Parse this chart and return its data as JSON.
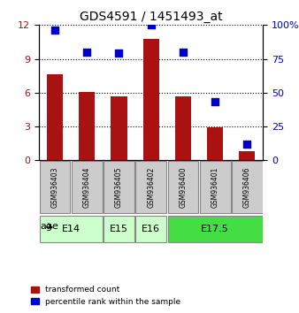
{
  "title": "GDS4591 / 1451493_at",
  "samples": [
    "GSM936403",
    "GSM936404",
    "GSM936405",
    "GSM936402",
    "GSM936400",
    "GSM936401",
    "GSM936406"
  ],
  "transformed_count": [
    7.6,
    6.05,
    5.7,
    10.8,
    5.7,
    2.9,
    0.8
  ],
  "percentile_rank": [
    96,
    80,
    79,
    100,
    80,
    43,
    12
  ],
  "bar_color": "#aa1111",
  "dot_color": "#0000cc",
  "left_ylim": [
    0,
    12
  ],
  "right_ylim": [
    0,
    100
  ],
  "left_yticks": [
    0,
    3,
    6,
    9,
    12
  ],
  "right_yticks": [
    0,
    25,
    50,
    75,
    100
  ],
  "right_yticklabels": [
    "0",
    "25",
    "50",
    "75",
    "100%"
  ],
  "age_groups": [
    {
      "label": "E14",
      "samples": [
        "GSM936403",
        "GSM936404"
      ],
      "color": "#ccffcc"
    },
    {
      "label": "E15",
      "samples": [
        "GSM936405"
      ],
      "color": "#ccffcc"
    },
    {
      "label": "E16",
      "samples": [
        "GSM936402"
      ],
      "color": "#ccffcc"
    },
    {
      "label": "E17.5",
      "samples": [
        "GSM936400",
        "GSM936401",
        "GSM936406"
      ],
      "color": "#44dd44"
    }
  ],
  "legend_bar_label": "transformed count",
  "legend_dot_label": "percentile rank within the sample",
  "background_color": "#ffffff",
  "sample_box_color": "#cccccc",
  "age_label": "age",
  "grid_linestyle": "dotted"
}
